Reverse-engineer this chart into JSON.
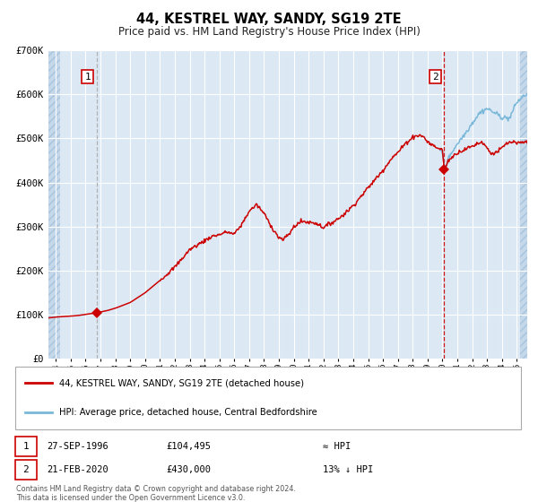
{
  "title": "44, KESTREL WAY, SANDY, SG19 2TE",
  "subtitle": "Price paid vs. HM Land Registry's House Price Index (HPI)",
  "legend_line1": "44, KESTREL WAY, SANDY, SG19 2TE (detached house)",
  "legend_line2": "HPI: Average price, detached house, Central Bedfordshire",
  "footnote1": "Contains HM Land Registry data © Crown copyright and database right 2024.",
  "footnote2": "This data is licensed under the Open Government Licence v3.0.",
  "annotation1_label": "1",
  "annotation1_date": "27-SEP-1996",
  "annotation1_price": "£104,495",
  "annotation1_hpi": "≈ HPI",
  "annotation2_label": "2",
  "annotation2_date": "21-FEB-2020",
  "annotation2_price": "£430,000",
  "annotation2_hpi": "13% ↓ HPI",
  "plot_bg_color": "#dce9f5",
  "hpi_line_color": "#7ab8d9",
  "price_line_color": "#cc0000",
  "vline1_color": "#aaaaaa",
  "vline2_color": "#cc0000",
  "marker_color": "#cc0000",
  "grid_color": "#ffffff",
  "box_color": "#cc0000",
  "ylim": [
    0,
    700000
  ],
  "yticks": [
    0,
    100000,
    200000,
    300000,
    400000,
    500000,
    600000,
    700000
  ],
  "ytick_labels": [
    "£0",
    "£100K",
    "£200K",
    "£300K",
    "£400K",
    "£500K",
    "£600K",
    "£700K"
  ],
  "xmin": 1993.5,
  "xmax": 2025.7,
  "sale1_x": 1996.73,
  "sale1_y": 104495,
  "sale2_x": 2020.12,
  "sale2_y": 430000,
  "vline1_x": 1996.73,
  "vline2_x": 2020.12,
  "hpi_start_year": 2019.8
}
